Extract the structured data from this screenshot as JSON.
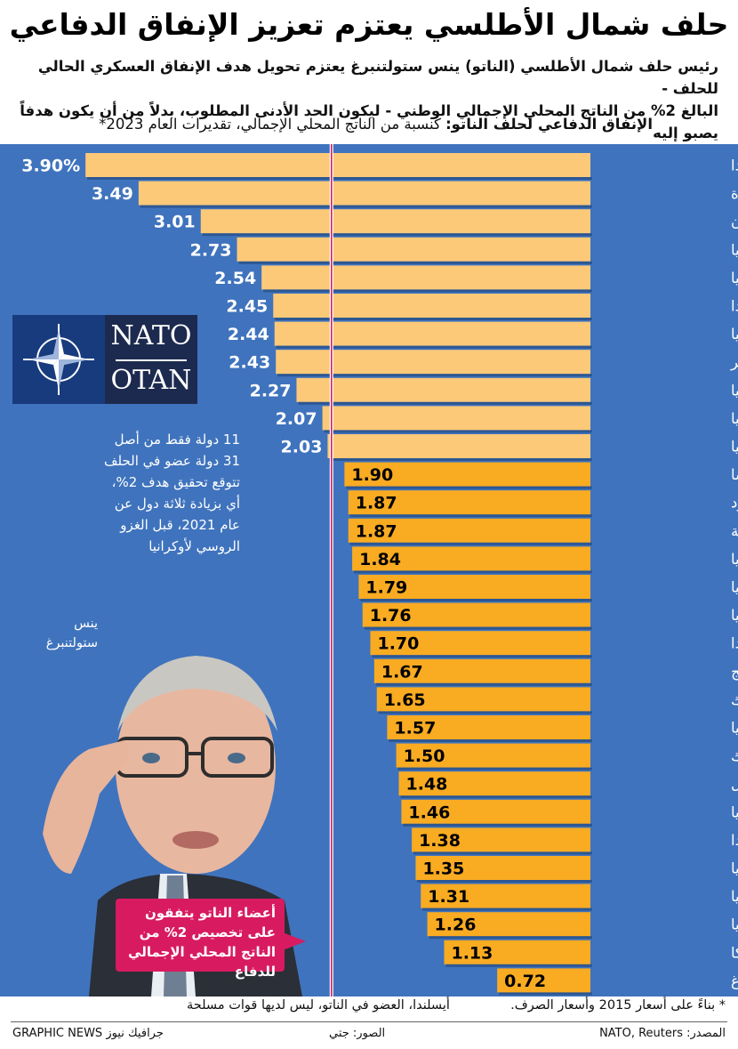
{
  "header": {
    "title": "حلف شمال الأطلسي يعتزم تعزيز الإنفاق الدفاعي",
    "subtitle_line1": "رئيس حلف شمال الأطلسي (الناتو) ينس ستولتنبرغ يعتزم تحويل هدف الإنفاق العسكري الحالي للحلف -",
    "subtitle_line2": "البالغ 2% من الناتج المحلي الإجمالي الوطني - ليكون الحد الأدنى المطلوب، بدلاً من أن يكون هدفاً يصبو إليه",
    "chart_label_bold": "الإنفاق الدفاعي لحلف الناتو:",
    "chart_label_rest": " كنسبة من الناتج المحلي الإجمالي، تقديرات العام 2023*"
  },
  "nato_logo": {
    "line1": "NATO",
    "line2": "OTAN"
  },
  "note": "11 دولة فقط من أصل 31 دولة عضو في الحلف تتوقع تحقيق هدف 2%، أي بزيادة ثلاثة دول عن عام 2021، قبل الغزو الروسي لأوكرانيا",
  "portrait_label": "ينس ستولتنبرغ",
  "callout": "أعضاء الناتو يتفقون على تخصيص 2% من الناتج المحلي الإجمالي للدفاع",
  "footer": {
    "footnote": "* بناءً على أسعار 2015 وأسعار الصرف.",
    "iceland_note": "أيسلندا، العضو في الناتو، ليس لديها قوات مسلحة",
    "source": "المصدر: NATO, Reuters",
    "photo_credit": "الصور: جتي",
    "brand": "GRAPHIC NEWS جرافيك نيوز"
  },
  "colors": {
    "panel": "#3f73bd",
    "bar_above_target": "#fcc979",
    "bar_below_target": "#f9ab22",
    "target_line": "#d81b60",
    "callout": "#d81b60"
  },
  "chart_data": {
    "type": "bar",
    "orientation": "horizontal",
    "value_suffix_first": "%",
    "target": 2,
    "xlim": [
      0,
      5.9
    ],
    "grid": false,
    "categories": [
      "بولندا",
      "الولايات المتحدة",
      "اليونان",
      "إستونيا",
      "ليتوانيا",
      "فنلندا",
      "رومانيا",
      "المجر",
      "لاتفيا",
      "بريطانيا",
      "سلوفاكيا",
      "فرنسا",
      "الجبل الأسود",
      "مقدونيا الشمالية",
      "بلغاريا",
      "كرواتيا",
      "ألبانيا",
      "هولندا",
      "النرويج",
      "الدنمارك",
      "ألمانيا",
      "جمهورية التشيك",
      "البرتغال",
      "إيطاليا",
      "كندا",
      "سلوفينيا",
      "تركيا",
      "إسبانيا",
      "بلجيكا",
      "لوكسمبورغ"
    ],
    "values": [
      3.9,
      3.49,
      3.01,
      2.73,
      2.54,
      2.45,
      2.44,
      2.43,
      2.27,
      2.07,
      2.03,
      1.9,
      1.87,
      1.87,
      1.84,
      1.79,
      1.76,
      1.7,
      1.67,
      1.65,
      1.57,
      1.5,
      1.48,
      1.46,
      1.38,
      1.35,
      1.31,
      1.26,
      1.13,
      0.72
    ],
    "value_labels": [
      "3.90%",
      "3.49",
      "3.01",
      "2.73",
      "2.54",
      "2.45",
      "2.44",
      "2.43",
      "2.27",
      "2.07",
      "2.03",
      "1.90",
      "1.87",
      "1.87",
      "1.84",
      "1.79",
      "1.76",
      "1.70",
      "1.67",
      "1.65",
      "1.57",
      "1.50",
      "1.48",
      "1.46",
      "1.38",
      "1.35",
      "1.31",
      "1.26",
      "1.13",
      "0.72"
    ]
  }
}
